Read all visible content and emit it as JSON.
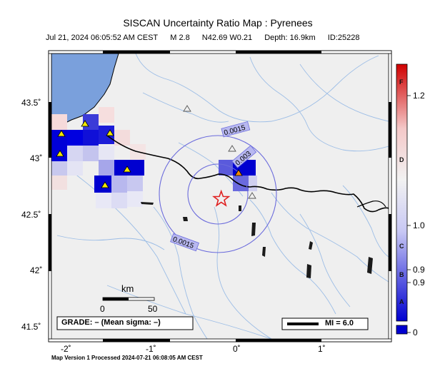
{
  "header": {
    "title": "SISCAN Uncertainty Ratio Map : Pyrenees",
    "datetime": "Jul 21, 2024 06:05:52 AM CEST",
    "magnitude": "M 2.8",
    "location": "N42.69 W0.21",
    "depth": "Depth: 16.9km",
    "event_id": "ID:25228"
  },
  "axes": {
    "x_ticks": [
      {
        "value": -2,
        "label": "-2˚"
      },
      {
        "value": -1,
        "label": "-1˚"
      },
      {
        "value": 0,
        "label": "0˚"
      },
      {
        "value": 1,
        "label": "1˚"
      }
    ],
    "y_ticks": [
      {
        "value": 43.5,
        "label": "43.5˚"
      },
      {
        "value": 43,
        "label": "43˚"
      },
      {
        "value": 42.5,
        "label": "42.5˚"
      },
      {
        "value": 42,
        "label": "42˚"
      },
      {
        "value": 41.5,
        "label": "41.5˚"
      }
    ],
    "lon_range": [
      -2.25,
      1.8
    ],
    "lat_range": [
      41.48,
      43.95
    ]
  },
  "contours": {
    "labels": [
      "0.0015",
      "0.003",
      "0.0015"
    ]
  },
  "colorbar": {
    "ticks": [
      "1.2",
      "1.0",
      "0.9",
      "0.9",
      "0"
    ],
    "letters": [
      "F",
      "D",
      "C",
      "B",
      "A"
    ],
    "colors": {
      "low": "#0000cc",
      "mid": "#f2f2f2",
      "high": "#cc0000"
    }
  },
  "scale_bar": {
    "title": "km",
    "ticks": [
      "0",
      "50"
    ]
  },
  "grade_box": {
    "text": "GRADE: – (Mean sigma: –)"
  },
  "mi_box": {
    "text": "MI = 6.0"
  },
  "epicenter": {
    "lon": -0.21,
    "lat": 42.69
  },
  "footer": {
    "text": "Map Version 1 Processed 2024-07-21 06:08:05 AM CEST"
  },
  "colors": {
    "sea": "#7aa0dc",
    "land": "#efefef",
    "rivers": "#9cbde6",
    "contour": "#6b6bdc",
    "border": "#000000",
    "epicenter": "#e02020"
  }
}
